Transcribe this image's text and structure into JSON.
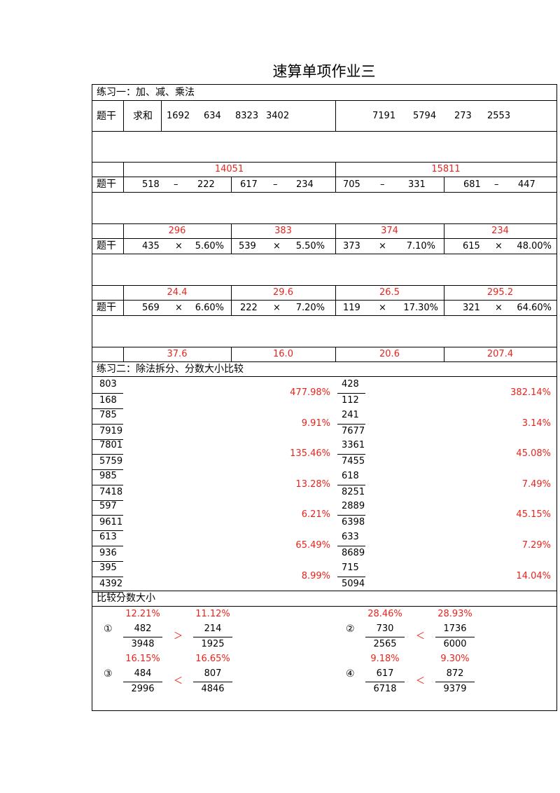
{
  "title": "速算单项作业三",
  "ex1": {
    "heading": "练习一：加、减、乘法",
    "stem_label": "题干",
    "sum_label": "求和",
    "sum_left": [
      "1692",
      "634",
      "8323",
      "3402"
    ],
    "sum_right": [
      "7191",
      "5794",
      "273",
      "2553"
    ],
    "sum_answers": [
      "14051",
      "15811"
    ],
    "sub": [
      {
        "a": "518",
        "op": "–",
        "b": "222"
      },
      {
        "a": "617",
        "op": "–",
        "b": "234"
      },
      {
        "a": "705",
        "op": "–",
        "b": "331"
      },
      {
        "a": "681",
        "op": "–",
        "b": "447"
      }
    ],
    "sub_answers": [
      "296",
      "383",
      "374",
      "234"
    ],
    "mul1": [
      {
        "a": "435",
        "op": "×",
        "b": "5.60%"
      },
      {
        "a": "539",
        "op": "×",
        "b": "5.50%"
      },
      {
        "a": "373",
        "op": "×",
        "b": "7.10%"
      },
      {
        "a": "615",
        "op": "×",
        "b": "48.00%"
      }
    ],
    "mul1_answers": [
      "24.4",
      "29.6",
      "26.5",
      "295.2"
    ],
    "mul2": [
      {
        "a": "569",
        "op": "×",
        "b": "6.60%"
      },
      {
        "a": "222",
        "op": "×",
        "b": "7.20%"
      },
      {
        "a": "119",
        "op": "×",
        "b": "17.30%"
      },
      {
        "a": "321",
        "op": "×",
        "b": "64.60%"
      }
    ],
    "mul2_answers": [
      "37.6",
      "16.0",
      "20.6",
      "207.4"
    ]
  },
  "ex2": {
    "heading": "练习二：除法拆分、分数大小比较",
    "left": [
      {
        "num": "803",
        "den": "168",
        "ans": "477.98%"
      },
      {
        "num": "785",
        "den": "7919",
        "ans": "9.91%"
      },
      {
        "num": "7801",
        "den": "5759",
        "ans": "135.46%"
      },
      {
        "num": "985",
        "den": "7418",
        "ans": "13.28%"
      },
      {
        "num": "597",
        "den": "9611",
        "ans": "6.21%"
      },
      {
        "num": "613",
        "den": "936",
        "ans": "65.49%"
      },
      {
        "num": "395",
        "den": "4392",
        "ans": "8.99%"
      }
    ],
    "right": [
      {
        "num": "428",
        "den": "112",
        "ans": "382.14%"
      },
      {
        "num": "241",
        "den": "7677",
        "ans": "3.14%"
      },
      {
        "num": "3361",
        "den": "7455",
        "ans": "45.08%"
      },
      {
        "num": "618",
        "den": "8251",
        "ans": "7.49%"
      },
      {
        "num": "2889",
        "den": "6398",
        "ans": "45.15%"
      },
      {
        "num": "633",
        "den": "8689",
        "ans": "7.29%"
      },
      {
        "num": "715",
        "den": "5094",
        "ans": "14.04%"
      }
    ]
  },
  "ex3": {
    "heading": "比较分数大小",
    "groups": [
      {
        "mark": "①",
        "p1": "12.21%",
        "n1": "482",
        "d1": "3948",
        "cmp": "＞",
        "p2": "11.12%",
        "n2": "214",
        "d2": "1925"
      },
      {
        "mark": "②",
        "p1": "28.46%",
        "n1": "730",
        "d1": "2565",
        "cmp": "＜",
        "p2": "28.93%",
        "n2": "1736",
        "d2": "6000"
      },
      {
        "mark": "③",
        "p1": "16.15%",
        "n1": "484",
        "d1": "2996",
        "cmp": "＜",
        "p2": "16.65%",
        "n2": "807",
        "d2": "4846"
      },
      {
        "mark": "④",
        "p1": "9.18%",
        "n1": "617",
        "d1": "6718",
        "cmp": "＜",
        "p2": "9.30%",
        "n2": "872",
        "d2": "9379"
      }
    ]
  }
}
